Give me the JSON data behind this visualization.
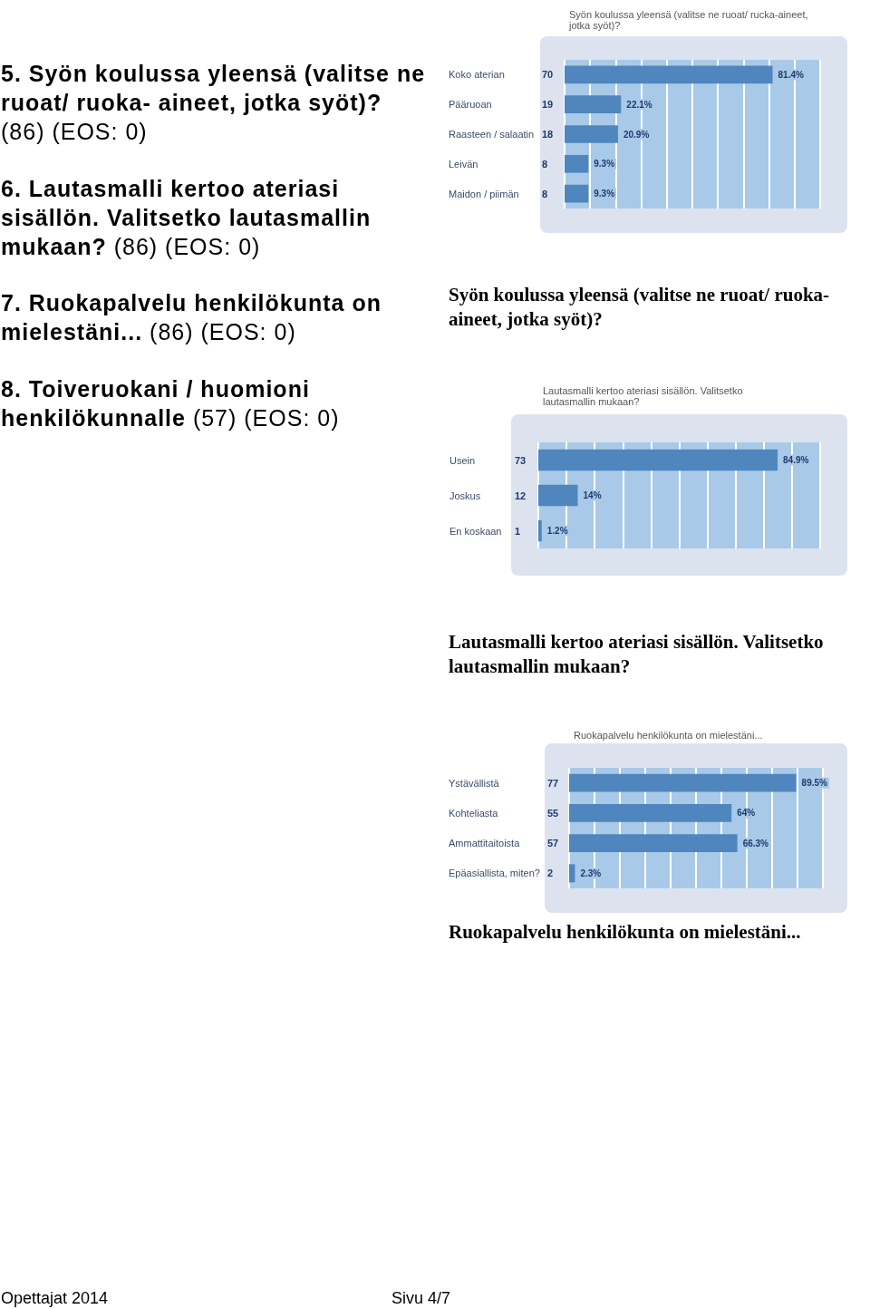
{
  "chart_data": [
    {
      "type": "other",
      "annotations": [
        "5. Syön koulussa yleensä (valitse ne ruoat/ ruoka- aineet, jotka syöt)? (86) (EOS: 0)",
        "6. Lautasmalli kertoo ateriasi sisällön. Valitsetko lautasmallin mukaan? (86) (EOS: 0)",
        "7. Ruokapalvelu henkilökunta on mielestäni... (86) (EOS: 0)",
        "8. Toiveruokani / huomioni henkilökunnalle (57) (EOS: 0)",
        "Opettajat 2014",
        "Sivu 4/7"
      ]
    },
    {
      "type": "bar",
      "orientation": "horizontal",
      "title": "Syön koulussa yleensä (valitse ne ruoat/ rucka-aineet, jotka syöt)?",
      "annotations": [
        "Syön koulussa yleensä (valitse ne ruoat/ ruoka-aineet, jotka syöt)?"
      ],
      "categories": [
        "Koko aterian",
        "Pääruoan",
        "Raasteen / salaatin",
        "Leivän",
        "Maidon / piimän"
      ],
      "y2_categories": [
        "70",
        "19",
        "18",
        "8",
        "8"
      ],
      "values": [
        81.4,
        22.1,
        20.9,
        9.3,
        9.3
      ],
      "color": "#4f86bd",
      "value_labels": [
        "81.4%",
        "22.1%",
        "20.9%",
        "9.3%",
        "9.3%"
      ],
      "xlim": [
        0,
        100
      ],
      "xticks": [
        {
          "value": 0,
          "label": null
        },
        {
          "value": 10,
          "label": null
        },
        {
          "value": 20,
          "label": null
        },
        {
          "value": 30,
          "label": null
        },
        {
          "value": 40,
          "label": null
        },
        {
          "value": 50,
          "label": null
        },
        {
          "value": 60,
          "label": null
        },
        {
          "value": 70,
          "label": null
        },
        {
          "value": 80,
          "label": null
        },
        {
          "value": 90,
          "label": null
        },
        {
          "value": 100,
          "label": null
        }
      ],
      "grid": "x",
      "tick_labels": "y"
    },
    {
      "type": "bar",
      "orientation": "horizontal",
      "title": "Lautasmalli kertoo ateriasi sisällön. Valitsetko lautasmallin mukaan?",
      "annotations": [
        "Lautasmalli kertoo ateriasi sisällön. Valitsetko lautasmallin mukaan?"
      ],
      "categories": [
        "Usein",
        "Joskus",
        "En koskaan"
      ],
      "y2_categories": [
        "73",
        "12",
        "1"
      ],
      "values": [
        84.9,
        14,
        1.2
      ],
      "color": "#4f86bd",
      "value_labels": [
        "84.9%",
        "14%",
        "1.2%"
      ],
      "xlim": [
        0,
        100
      ],
      "xticks": [
        {
          "value": 0,
          "label": null
        },
        {
          "value": 10,
          "label": null
        },
        {
          "value": 20,
          "label": null
        },
        {
          "value": 30,
          "label": null
        },
        {
          "value": 40,
          "label": null
        },
        {
          "value": 50,
          "label": null
        },
        {
          "value": 60,
          "label": null
        },
        {
          "value": 70,
          "label": null
        },
        {
          "value": 80,
          "label": null
        },
        {
          "value": 90,
          "label": null
        },
        {
          "value": 100,
          "label": null
        }
      ],
      "grid": "x",
      "tick_labels": "y"
    },
    {
      "type": "bar",
      "orientation": "horizontal",
      "title": "Ruokapalvelu henkilökunta on mielestäni...",
      "annotations": [
        "Ruokapalvelu henkilökunta on mielestäni..."
      ],
      "categories": [
        "Ystävällistä",
        "Kohteliasta",
        "Ammattitaitoista",
        "Epäasiallista, miten?"
      ],
      "y2_categories": [
        "77",
        "55",
        "57",
        "2"
      ],
      "values": [
        89.5,
        64,
        66.3,
        2.3
      ],
      "color": "#4f86bd",
      "value_labels": [
        "89.5%",
        "64%",
        "66.3%",
        "2.3%"
      ],
      "xlim": [
        0,
        100
      ],
      "xticks": [
        {
          "value": 0,
          "label": null
        },
        {
          "value": 10,
          "label": null
        },
        {
          "value": 20,
          "label": null
        },
        {
          "value": 30,
          "label": null
        },
        {
          "value": 40,
          "label": null
        },
        {
          "value": 50,
          "label": null
        },
        {
          "value": 60,
          "label": null
        },
        {
          "value": 70,
          "label": null
        },
        {
          "value": 80,
          "label": null
        },
        {
          "value": 90,
          "label": null
        },
        {
          "value": 100,
          "label": null
        }
      ],
      "grid": "x",
      "tick_labels": "y"
    }
  ]
}
